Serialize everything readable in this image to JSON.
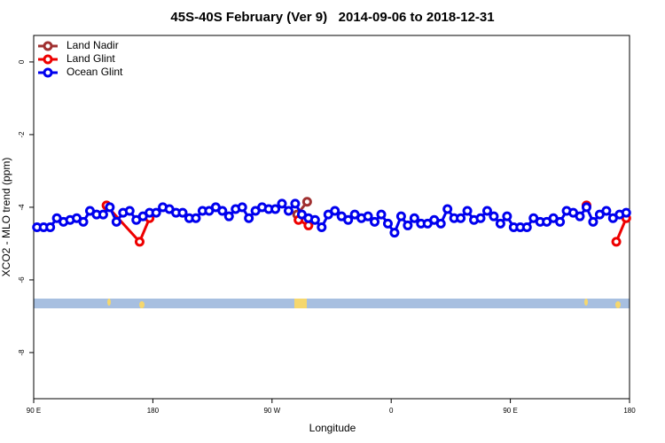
{
  "chart_data": {
    "type": "line",
    "title": "45S-40S February (Ver 9)   2014-09-06 to 2018-12-31",
    "x_label": "Longitude",
    "y_label": "XCO2 - MLO trend (ppm)",
    "xlim": [
      90,
      540
    ],
    "xticks": [
      {
        "value": 90,
        "label": "90 E"
      },
      {
        "value": 180,
        "label": "180"
      },
      {
        "value": 270,
        "label": "90 W"
      },
      {
        "value": 360,
        "label": "0"
      },
      {
        "value": 450,
        "label": "90 E"
      },
      {
        "value": 540,
        "label": "180"
      }
    ],
    "ylim": [
      -9.27,
      0.73
    ],
    "yticks": [
      0,
      -2,
      -4,
      -6,
      -8
    ],
    "grid": false,
    "legend": "top-left",
    "series": [
      {
        "name": "Land Nadir",
        "color": "#a03030",
        "x": [
          289,
          296.5
        ],
        "values": [
          -4.2,
          -3.85
        ]
      },
      {
        "name": "Land Glint",
        "color": "#ee0000",
        "x": [
          145,
          170,
          177.5,
          null,
          290,
          297.5,
          null,
          507.5,
          null,
          530,
          537.5
        ],
        "values": [
          -3.95,
          -4.95,
          -4.3,
          null,
          -4.35,
          -4.5,
          null,
          -3.95,
          null,
          -4.95,
          -4.3
        ]
      },
      {
        "name": "Ocean Glint",
        "color": "#0000ee",
        "x": [
          92.5,
          97.5,
          102.5,
          107.5,
          112.5,
          117.5,
          122.5,
          127.5,
          132.5,
          137.5,
          142.5,
          147.5,
          152.5,
          157.5,
          162.5,
          167.5,
          172.5,
          177.5,
          182.5,
          187.5,
          192.5,
          197.5,
          202.5,
          207.5,
          212.5,
          217.5,
          222.5,
          227.5,
          232.5,
          237.5,
          242.5,
          247.5,
          252.5,
          257.5,
          262.5,
          267.5,
          272.5,
          277.5,
          282.5,
          287.5,
          292.5,
          297.5,
          302.5,
          307.5,
          312.5,
          317.5,
          322.5,
          327.5,
          332.5,
          337.5,
          342.5,
          347.5,
          352.5,
          357.5,
          362.5,
          367.5,
          372.5,
          377.5,
          382.5,
          387.5,
          392.5,
          397.5,
          402.5,
          407.5,
          412.5,
          417.5,
          422.5,
          427.5,
          432.5,
          437.5,
          442.5,
          447.5,
          452.5,
          457.5,
          462.5,
          467.5,
          472.5,
          477.5,
          482.5,
          487.5,
          492.5,
          497.5,
          502.5,
          507.5,
          512.5,
          517.5,
          522.5,
          527.5,
          532.5,
          537.5
        ],
        "values": [
          -4.55,
          -4.55,
          -4.55,
          -4.3,
          -4.4,
          -4.35,
          -4.3,
          -4.4,
          -4.1,
          -4.2,
          -4.2,
          -4.0,
          -4.4,
          -4.15,
          -4.1,
          -4.35,
          -4.25,
          -4.15,
          -4.15,
          -4.0,
          -4.05,
          -4.15,
          -4.15,
          -4.3,
          -4.3,
          -4.1,
          -4.1,
          -4.0,
          -4.1,
          -4.25,
          -4.05,
          -4.0,
          -4.3,
          -4.1,
          -4.0,
          -4.05,
          -4.05,
          -3.9,
          -4.1,
          -3.9,
          -4.2,
          -4.3,
          -4.35,
          -4.55,
          -4.2,
          -4.1,
          -4.25,
          -4.35,
          -4.2,
          -4.3,
          -4.25,
          -4.4,
          -4.2,
          -4.45,
          -4.7,
          -4.25,
          -4.5,
          -4.3,
          -4.45,
          -4.45,
          -4.35,
          -4.45,
          -4.05,
          -4.3,
          -4.3,
          -4.1,
          -4.35,
          -4.3,
          -4.1,
          -4.25,
          -4.45,
          -4.25,
          -4.55,
          -4.55,
          -4.55,
          -4.3,
          -4.4,
          -4.4,
          -4.3,
          -4.4,
          -4.1,
          -4.15,
          -4.25,
          -4.0,
          -4.4,
          -4.2,
          -4.1,
          -4.3,
          -4.2,
          -4.15
        ]
      }
    ]
  }
}
